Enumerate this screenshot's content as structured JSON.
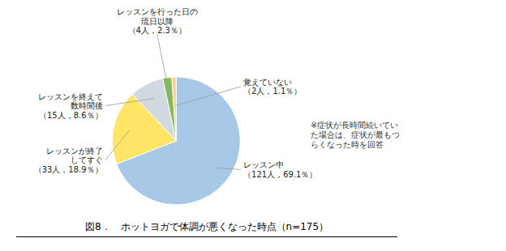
{
  "chart_data": {
    "type": "pie",
    "title": "図8．　ホットヨガで体調が悪くなった時点（n=175）",
    "categories": [
      "レッスン中\n（121人，69.1％）",
      "レッスンが終了\nしてすぐ\n（33人，18.9％）",
      "レッスンを終えて\n数時間後\n（15人，8.6％）",
      "レッスンを行った日の\n琉日以降\n（4人，2.3％）",
      "覚えていない\n（2人，1.1％）"
    ],
    "values": [
      69.1,
      18.9,
      8.6,
      2.3,
      1.1
    ],
    "colors": [
      "#A8C8E8",
      "#FFE566",
      "#D0D8E0",
      "#88BB55",
      "#FFCC99"
    ],
    "annotations": [
      "※症状が長時間続いてい\nた場合は、症状が最もつ\nらくなった時を回答"
    ]
  }
}
